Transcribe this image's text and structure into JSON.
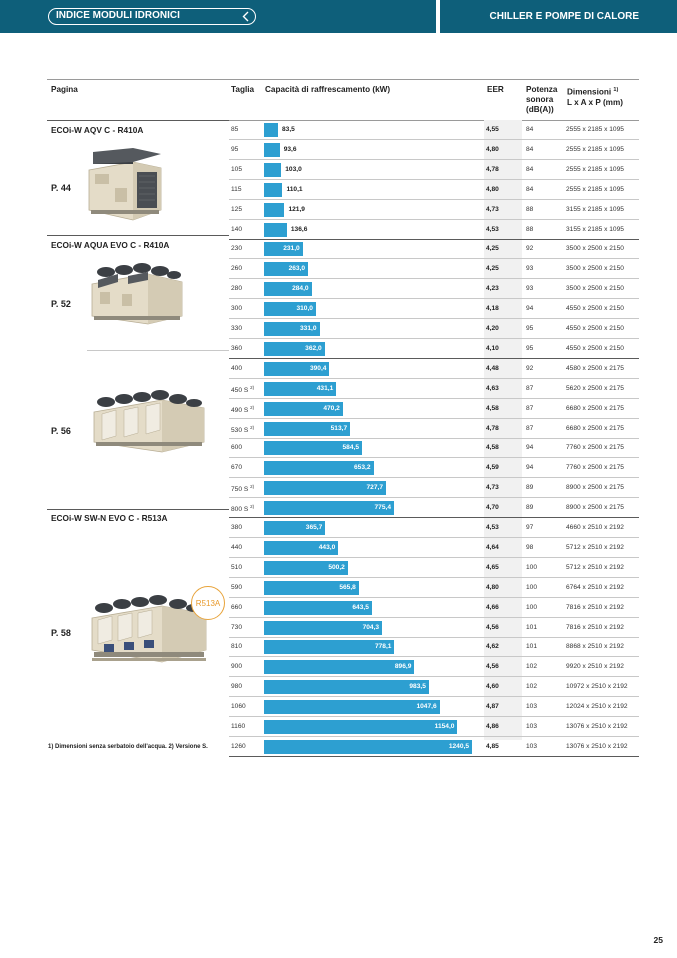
{
  "header": {
    "left_title": "INDICE MODULI IDRONICI",
    "right_title": "CHILLER E POMPE DI CALORE"
  },
  "columns": {
    "pagina": "Pagina",
    "taglia": "Taglia",
    "capacita": "Capacità di raffrescamento (kW)",
    "eer": "EER",
    "potenza": [
      "Potenza",
      "sonora",
      "(dB(A))"
    ],
    "dimensioni": [
      "Dimensioni",
      "L x A x P (mm)"
    ],
    "dimensioni_sup": "1)"
  },
  "groups": [
    {
      "model": "ECOi-W AQV C - R410A",
      "page": "P. 44"
    },
    {
      "model": "ECOi-W AQUA EVO C - R410A",
      "page": "P. 52"
    },
    {
      "model": "",
      "page": "P. 56"
    },
    {
      "model": "ECOi-W SW-N EVO C - R513A",
      "page": "P. 58"
    }
  ],
  "rows": [
    {
      "taglia": "85",
      "sup": "",
      "cap": "83,5",
      "value": 83.5,
      "eer": "4,55",
      "pot": "84",
      "dim": "2555 x 2185 x 1095"
    },
    {
      "taglia": "95",
      "sup": "",
      "cap": "93,6",
      "value": 93.6,
      "eer": "4,80",
      "pot": "84",
      "dim": "2555 x 2185 x 1095"
    },
    {
      "taglia": "105",
      "sup": "",
      "cap": "103,0",
      "value": 103.0,
      "eer": "4,78",
      "pot": "84",
      "dim": "2555 x 2185 x 1095"
    },
    {
      "taglia": "115",
      "sup": "",
      "cap": "110,1",
      "value": 110.1,
      "eer": "4,80",
      "pot": "84",
      "dim": "2555 x 2185 x 1095"
    },
    {
      "taglia": "125",
      "sup": "",
      "cap": "121,9",
      "value": 121.9,
      "eer": "4,73",
      "pot": "88",
      "dim": "3155 x 2185 x 1095"
    },
    {
      "taglia": "140",
      "sup": "",
      "cap": "136,6",
      "value": 136.6,
      "eer": "4,53",
      "pot": "88",
      "dim": "3155 x 2185 x 1095"
    },
    {
      "taglia": "230",
      "sup": "",
      "cap": "231,0",
      "value": 231.0,
      "eer": "4,25",
      "pot": "92",
      "dim": "3500 x 2500 x 2150"
    },
    {
      "taglia": "260",
      "sup": "",
      "cap": "263,0",
      "value": 263.0,
      "eer": "4,25",
      "pot": "93",
      "dim": "3500 x 2500 x 2150"
    },
    {
      "taglia": "280",
      "sup": "",
      "cap": "284,0",
      "value": 284.0,
      "eer": "4,23",
      "pot": "93",
      "dim": "3500 x 2500 x 2150"
    },
    {
      "taglia": "300",
      "sup": "",
      "cap": "310,0",
      "value": 310.0,
      "eer": "4,18",
      "pot": "94",
      "dim": "4550 x 2500 x 2150"
    },
    {
      "taglia": "330",
      "sup": "",
      "cap": "331,0",
      "value": 331.0,
      "eer": "4,20",
      "pot": "95",
      "dim": "4550 x 2500 x 2150"
    },
    {
      "taglia": "360",
      "sup": "",
      "cap": "362,0",
      "value": 362.0,
      "eer": "4,10",
      "pot": "95",
      "dim": "4550 x 2500 x 2150"
    },
    {
      "taglia": "400",
      "sup": "",
      "cap": "390,4",
      "value": 390.4,
      "eer": "4,48",
      "pot": "92",
      "dim": "4580 x 2500 x 2175"
    },
    {
      "taglia": "450 S",
      "sup": "2)",
      "cap": "431,1",
      "value": 431.1,
      "eer": "4,63",
      "pot": "87",
      "dim": "5620 x 2500 x 2175"
    },
    {
      "taglia": "490 S",
      "sup": "2)",
      "cap": "470,2",
      "value": 470.2,
      "eer": "4,58",
      "pot": "87",
      "dim": "6680 x 2500 x 2175"
    },
    {
      "taglia": "530 S",
      "sup": "2)",
      "cap": "513,7",
      "value": 513.7,
      "eer": "4,78",
      "pot": "87",
      "dim": "6680 x 2500 x 2175"
    },
    {
      "taglia": "600",
      "sup": "",
      "cap": "584,5",
      "value": 584.5,
      "eer": "4,58",
      "pot": "94",
      "dim": "7760 x 2500 x 2175"
    },
    {
      "taglia": "670",
      "sup": "",
      "cap": "653,2",
      "value": 653.2,
      "eer": "4,59",
      "pot": "94",
      "dim": "7760 x 2500 x 2175"
    },
    {
      "taglia": "750 S",
      "sup": "2)",
      "cap": "727,7",
      "value": 727.7,
      "eer": "4,73",
      "pot": "89",
      "dim": "8900 x 2500 x 2175"
    },
    {
      "taglia": "800 S",
      "sup": "2)",
      "cap": "775,4",
      "value": 775.4,
      "eer": "4,70",
      "pot": "89",
      "dim": "8900 x 2500 x 2175"
    },
    {
      "taglia": "380",
      "sup": "",
      "cap": "365,7",
      "value": 365.7,
      "eer": "4,53",
      "pot": "97",
      "dim": "4660 x 2510 x 2192"
    },
    {
      "taglia": "440",
      "sup": "",
      "cap": "443,0",
      "value": 443.0,
      "eer": "4,64",
      "pot": "98",
      "dim": "5712 x 2510 x 2192"
    },
    {
      "taglia": "510",
      "sup": "",
      "cap": "500,2",
      "value": 500.2,
      "eer": "4,65",
      "pot": "100",
      "dim": "5712 x 2510 x 2192"
    },
    {
      "taglia": "590",
      "sup": "",
      "cap": "565,8",
      "value": 565.8,
      "eer": "4,80",
      "pot": "100",
      "dim": "6764 x 2510 x 2192"
    },
    {
      "taglia": "660",
      "sup": "",
      "cap": "643,5",
      "value": 643.5,
      "eer": "4,66",
      "pot": "100",
      "dim": "7816 x 2510 x 2192"
    },
    {
      "taglia": "730",
      "sup": "",
      "cap": "704,3",
      "value": 704.3,
      "eer": "4,56",
      "pot": "101",
      "dim": "7816 x 2510 x 2192"
    },
    {
      "taglia": "810",
      "sup": "",
      "cap": "778,1",
      "value": 778.1,
      "eer": "4,62",
      "pot": "101",
      "dim": "8868 x 2510 x 2192"
    },
    {
      "taglia": "900",
      "sup": "",
      "cap": "896,9",
      "value": 896.9,
      "eer": "4,56",
      "pot": "102",
      "dim": "9920 x 2510 x 2192"
    },
    {
      "taglia": "980",
      "sup": "",
      "cap": "983,5",
      "value": 983.5,
      "eer": "4,60",
      "pot": "102",
      "dim": "10972 x 2510 x 2192"
    },
    {
      "taglia": "1060",
      "sup": "",
      "cap": "1047,6",
      "value": 1047.6,
      "eer": "4,87",
      "pot": "103",
      "dim": "12024 x 2510 x 2192"
    },
    {
      "taglia": "1160",
      "sup": "",
      "cap": "1154,0",
      "value": 1154.0,
      "eer": "4,86",
      "pot": "103",
      "dim": "13076 x 2510 x 2192"
    },
    {
      "taglia": "1260",
      "sup": "",
      "cap": "1240,5",
      "value": 1240.5,
      "eer": "4,85",
      "pot": "103",
      "dim": "13076 x 2510 x 2192"
    }
  ],
  "refrigerant_badge": "R513A",
  "footnote": "1) Dimensioni senza serbatoio dell'acqua. 2) Versione S.",
  "page_number": "25",
  "colors": {
    "header_bg": "#0e5f7a",
    "bar": "#2d9fd1",
    "badge": "#e89a2c"
  }
}
